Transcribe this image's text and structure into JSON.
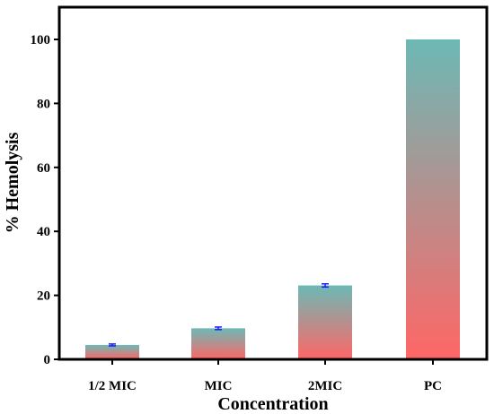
{
  "chart_data": {
    "type": "bar",
    "categories": [
      "1/2 MIC",
      "MIC",
      "2MIC",
      "PC"
    ],
    "values": [
      4.5,
      9.7,
      23.1,
      100
    ],
    "errors": [
      0.3,
      0.4,
      0.5,
      0
    ],
    "xlabel": "Concentration",
    "ylabel": "% Hemolysis",
    "ylim": [
      0,
      110
    ],
    "yticks": [
      "0",
      "20",
      "40",
      "60",
      "80",
      "100"
    ],
    "grid": false,
    "bar_gradient": {
      "top": "#6cb9b5",
      "bottom": "#ff6666"
    },
    "error_bar_color": "#1a1aff"
  }
}
